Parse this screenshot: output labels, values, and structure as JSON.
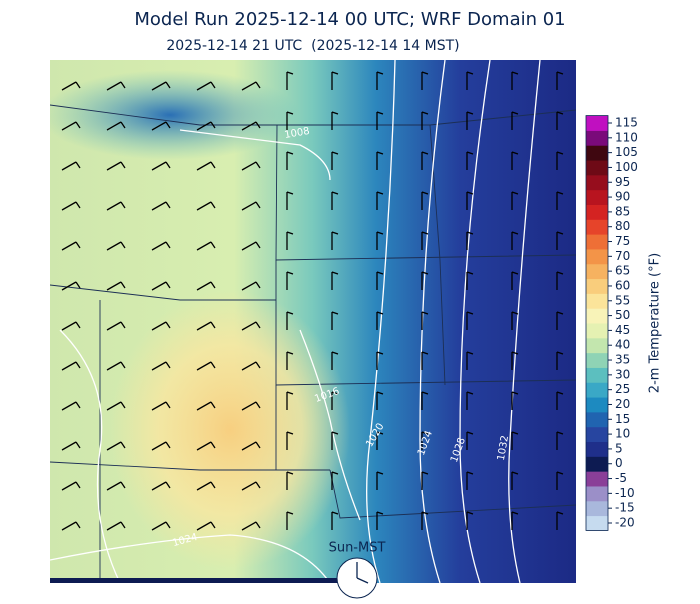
{
  "title": "Model Run 2025-12-14 00 UTC; WRF Domain 01",
  "subtitle": "2025-12-14 21 UTC  (2025-12-14 14 MST)",
  "map": {
    "isobar_labels": [
      "1008",
      "1016",
      "1020",
      "1024",
      "1028",
      "1032",
      "1024"
    ]
  },
  "colorbar": {
    "label": "2-m Temperature (°F)",
    "ticks": [
      -20,
      -15,
      -10,
      -5,
      0,
      5,
      10,
      15,
      20,
      25,
      30,
      35,
      40,
      45,
      50,
      55,
      60,
      65,
      70,
      75,
      80,
      85,
      90,
      95,
      100,
      105,
      110,
      115
    ],
    "colors": [
      "#c6dbef",
      "#a9b8dc",
      "#9b8fc8",
      "#8a3f98",
      "#0d1b52",
      "#1f2f8a",
      "#2745a0",
      "#2064b0",
      "#1d8ac0",
      "#3aa8c6",
      "#5cbfbf",
      "#8fd3b5",
      "#c3e6ae",
      "#e5f1b2",
      "#f8f3b8",
      "#fbe49a",
      "#f9cd7c",
      "#f6b260",
      "#f39448",
      "#ee6f36",
      "#e6442a",
      "#d42322",
      "#b8141f",
      "#960d1d",
      "#6e0a16",
      "#3f0710",
      "#7a0a7a",
      "#c010c0"
    ]
  },
  "clock": {
    "label": "Sun-MST"
  }
}
